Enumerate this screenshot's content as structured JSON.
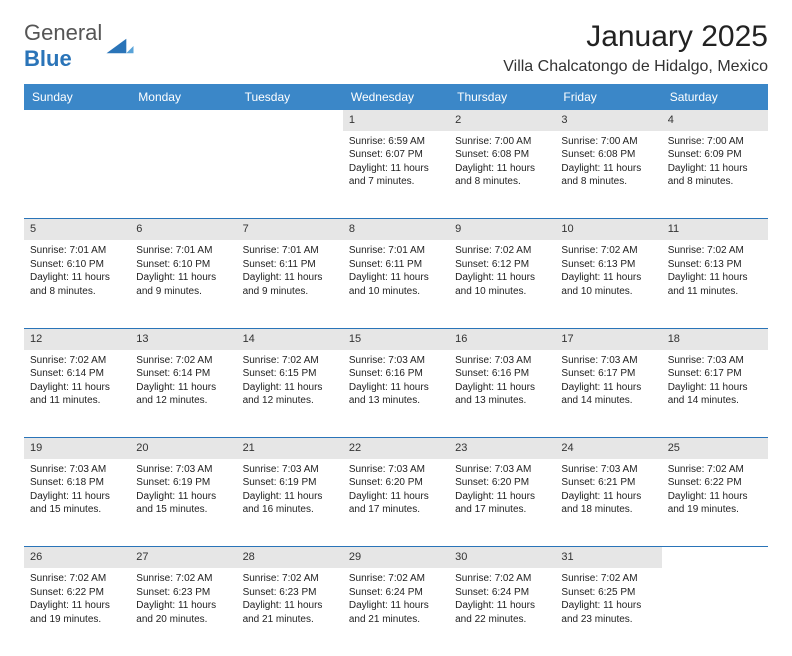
{
  "logo": {
    "text1": "General",
    "text2": "Blue"
  },
  "title": "January 2025",
  "location": "Villa Chalcatongo de Hidalgo, Mexico",
  "colors": {
    "header_bg": "#3b87c8",
    "header_fg": "#ffffff",
    "daynum_bg": "#e6e6e6",
    "rule": "#2a74b8"
  },
  "weekdays": [
    "Sunday",
    "Monday",
    "Tuesday",
    "Wednesday",
    "Thursday",
    "Friday",
    "Saturday"
  ],
  "weeks": [
    [
      null,
      null,
      null,
      {
        "n": "1",
        "sr": "6:59 AM",
        "ss": "6:07 PM",
        "dl": "11 hours and 7 minutes."
      },
      {
        "n": "2",
        "sr": "7:00 AM",
        "ss": "6:08 PM",
        "dl": "11 hours and 8 minutes."
      },
      {
        "n": "3",
        "sr": "7:00 AM",
        "ss": "6:08 PM",
        "dl": "11 hours and 8 minutes."
      },
      {
        "n": "4",
        "sr": "7:00 AM",
        "ss": "6:09 PM",
        "dl": "11 hours and 8 minutes."
      }
    ],
    [
      {
        "n": "5",
        "sr": "7:01 AM",
        "ss": "6:10 PM",
        "dl": "11 hours and 8 minutes."
      },
      {
        "n": "6",
        "sr": "7:01 AM",
        "ss": "6:10 PM",
        "dl": "11 hours and 9 minutes."
      },
      {
        "n": "7",
        "sr": "7:01 AM",
        "ss": "6:11 PM",
        "dl": "11 hours and 9 minutes."
      },
      {
        "n": "8",
        "sr": "7:01 AM",
        "ss": "6:11 PM",
        "dl": "11 hours and 10 minutes."
      },
      {
        "n": "9",
        "sr": "7:02 AM",
        "ss": "6:12 PM",
        "dl": "11 hours and 10 minutes."
      },
      {
        "n": "10",
        "sr": "7:02 AM",
        "ss": "6:13 PM",
        "dl": "11 hours and 10 minutes."
      },
      {
        "n": "11",
        "sr": "7:02 AM",
        "ss": "6:13 PM",
        "dl": "11 hours and 11 minutes."
      }
    ],
    [
      {
        "n": "12",
        "sr": "7:02 AM",
        "ss": "6:14 PM",
        "dl": "11 hours and 11 minutes."
      },
      {
        "n": "13",
        "sr": "7:02 AM",
        "ss": "6:14 PM",
        "dl": "11 hours and 12 minutes."
      },
      {
        "n": "14",
        "sr": "7:02 AM",
        "ss": "6:15 PM",
        "dl": "11 hours and 12 minutes."
      },
      {
        "n": "15",
        "sr": "7:03 AM",
        "ss": "6:16 PM",
        "dl": "11 hours and 13 minutes."
      },
      {
        "n": "16",
        "sr": "7:03 AM",
        "ss": "6:16 PM",
        "dl": "11 hours and 13 minutes."
      },
      {
        "n": "17",
        "sr": "7:03 AM",
        "ss": "6:17 PM",
        "dl": "11 hours and 14 minutes."
      },
      {
        "n": "18",
        "sr": "7:03 AM",
        "ss": "6:17 PM",
        "dl": "11 hours and 14 minutes."
      }
    ],
    [
      {
        "n": "19",
        "sr": "7:03 AM",
        "ss": "6:18 PM",
        "dl": "11 hours and 15 minutes."
      },
      {
        "n": "20",
        "sr": "7:03 AM",
        "ss": "6:19 PM",
        "dl": "11 hours and 15 minutes."
      },
      {
        "n": "21",
        "sr": "7:03 AM",
        "ss": "6:19 PM",
        "dl": "11 hours and 16 minutes."
      },
      {
        "n": "22",
        "sr": "7:03 AM",
        "ss": "6:20 PM",
        "dl": "11 hours and 17 minutes."
      },
      {
        "n": "23",
        "sr": "7:03 AM",
        "ss": "6:20 PM",
        "dl": "11 hours and 17 minutes."
      },
      {
        "n": "24",
        "sr": "7:03 AM",
        "ss": "6:21 PM",
        "dl": "11 hours and 18 minutes."
      },
      {
        "n": "25",
        "sr": "7:02 AM",
        "ss": "6:22 PM",
        "dl": "11 hours and 19 minutes."
      }
    ],
    [
      {
        "n": "26",
        "sr": "7:02 AM",
        "ss": "6:22 PM",
        "dl": "11 hours and 19 minutes."
      },
      {
        "n": "27",
        "sr": "7:02 AM",
        "ss": "6:23 PM",
        "dl": "11 hours and 20 minutes."
      },
      {
        "n": "28",
        "sr": "7:02 AM",
        "ss": "6:23 PM",
        "dl": "11 hours and 21 minutes."
      },
      {
        "n": "29",
        "sr": "7:02 AM",
        "ss": "6:24 PM",
        "dl": "11 hours and 21 minutes."
      },
      {
        "n": "30",
        "sr": "7:02 AM",
        "ss": "6:24 PM",
        "dl": "11 hours and 22 minutes."
      },
      {
        "n": "31",
        "sr": "7:02 AM",
        "ss": "6:25 PM",
        "dl": "11 hours and 23 minutes."
      },
      null
    ]
  ],
  "labels": {
    "sunrise": "Sunrise:",
    "sunset": "Sunset:",
    "daylight": "Daylight:"
  }
}
